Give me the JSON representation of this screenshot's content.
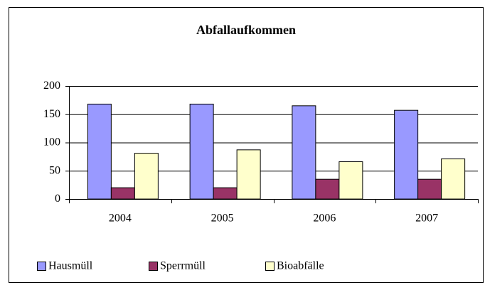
{
  "chart_data": {
    "type": "bar",
    "title": "Abfallaufkommen",
    "categories": [
      "2004",
      "2005",
      "2006",
      "2007"
    ],
    "series": [
      {
        "name": "Hausmüll",
        "color": "#9999ff",
        "values": [
          168,
          168,
          165,
          157
        ]
      },
      {
        "name": "Sperrmüll",
        "color": "#993366",
        "values": [
          20,
          20,
          35,
          35
        ]
      },
      {
        "name": "Bioabfälle",
        "color": "#ffffcc",
        "values": [
          81,
          87,
          66,
          71
        ]
      }
    ],
    "ylim": [
      0,
      200
    ],
    "yticks": [
      0,
      50,
      100,
      150,
      200
    ],
    "grid": true,
    "legend": "bottom-left"
  }
}
